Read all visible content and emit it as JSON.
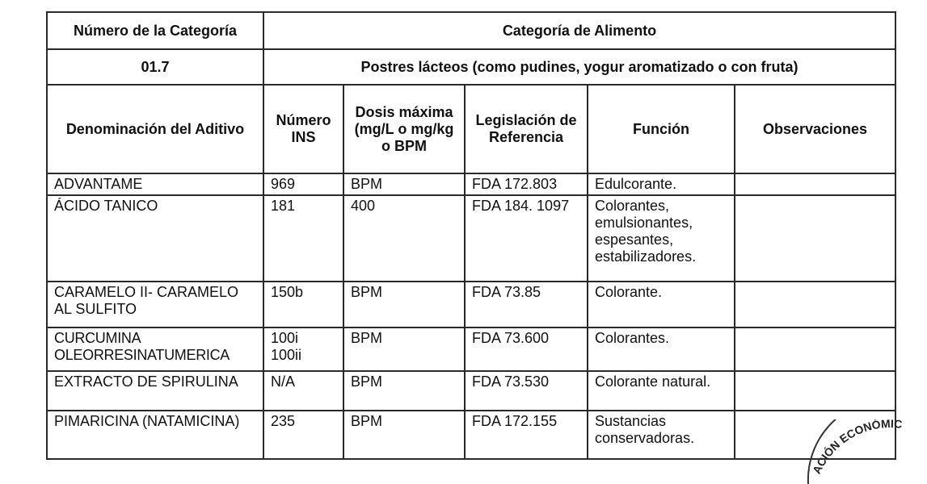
{
  "header": {
    "category_number_label": "Número de la Categoría",
    "food_category_label": "Categoría de Alimento",
    "category_number": "01.7",
    "category_name": "Postres lácteos (como pudines, yogur aromatizado o con fruta)"
  },
  "columns": [
    "Denominación del Aditivo",
    "Número INS",
    "Dosis máxima (mg/L o mg/kg o BPM",
    "Legislación de Referencia",
    "Función",
    "Observaciones"
  ],
  "rows": [
    {
      "name": "ADVANTAME",
      "ins": "969",
      "dose": "BPM",
      "law": "FDA 172.803",
      "function": "Edulcorante.",
      "notes": ""
    },
    {
      "name": "ÁCIDO TANICO",
      "ins": "181",
      "dose": "400",
      "law": "FDA 184. 1097",
      "function": "Colorantes, emulsionantes, espesantes, estabilizadores.",
      "notes": ""
    },
    {
      "name": "CARAMELO II- CARAMELO AL SULFITO",
      "ins": "150b",
      "dose": "BPM",
      "law": "FDA 73.85",
      "function": "Colorante.",
      "notes": ""
    },
    {
      "name": "CURCUMINA OLEORRESINATUMERICA",
      "ins": "100i 100ii",
      "dose": "BPM",
      "law": "FDA 73.600",
      "function": "Colorantes.",
      "notes": ""
    },
    {
      "name": "EXTRACTO DE SPIRULINA",
      "ins": "N/A",
      "dose": "BPM",
      "law": "FDA 73.530",
      "function": "Colorante natural.",
      "notes": ""
    },
    {
      "name": "PIMARICINA (NATAMICINA)",
      "ins": "235",
      "dose": "BPM",
      "law": "FDA 172.155",
      "function": "Sustancias conservadoras.",
      "notes": ""
    }
  ],
  "stamp": {
    "text": "ACIÓN ECONÓMIC"
  }
}
